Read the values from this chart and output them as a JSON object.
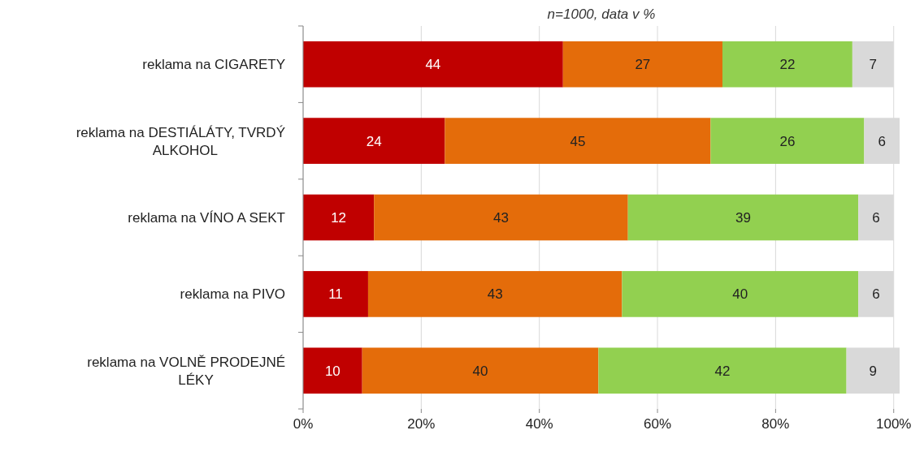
{
  "chart_data": {
    "type": "bar",
    "orientation": "horizontal",
    "stacked": true,
    "subtitle": "n=1000, data v %",
    "categories": [
      "reklama na CIGARETY",
      "reklama na DESTIÁLÁTY, TVRDÝ ALKOHOL",
      "reklama na VÍNO A SEKT",
      "reklama na PIVO",
      "reklama na VOLNĚ PRODEJNÉ LÉKY"
    ],
    "series": [
      {
        "color": "#c00000",
        "values": [
          44,
          24,
          12,
          11,
          10
        ]
      },
      {
        "color": "#e46c0a",
        "values": [
          27,
          45,
          43,
          43,
          40
        ]
      },
      {
        "color": "#92d050",
        "values": [
          22,
          26,
          39,
          40,
          42
        ]
      },
      {
        "color": "#d9d9d9",
        "values": [
          7,
          6,
          6,
          6,
          9
        ]
      }
    ],
    "xlim": [
      0,
      101
    ],
    "xticks": [
      {
        "value": 0,
        "label": "0%"
      },
      {
        "value": 20,
        "label": "20%"
      },
      {
        "value": 40,
        "label": "40%"
      },
      {
        "value": 60,
        "label": "60%"
      },
      {
        "value": 80,
        "label": "80%"
      },
      {
        "value": 100,
        "label": "100%"
      }
    ],
    "grid": "x",
    "data_labels": true
  }
}
